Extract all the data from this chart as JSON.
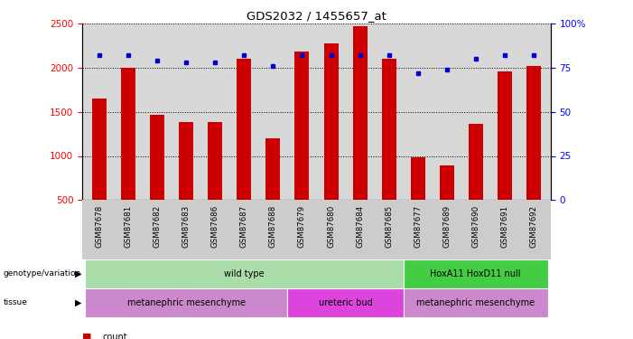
{
  "title": "GDS2032 / 1455657_at",
  "samples": [
    "GSM87678",
    "GSM87681",
    "GSM87682",
    "GSM87683",
    "GSM87686",
    "GSM87687",
    "GSM87688",
    "GSM87679",
    "GSM87680",
    "GSM87684",
    "GSM87685",
    "GSM87677",
    "GSM87689",
    "GSM87690",
    "GSM87691",
    "GSM87692"
  ],
  "counts": [
    1650,
    2000,
    1470,
    1380,
    1380,
    2100,
    1200,
    2180,
    2280,
    2470,
    2100,
    980,
    890,
    1360,
    1960,
    2020
  ],
  "percentiles": [
    82,
    82,
    79,
    78,
    78,
    82,
    76,
    82,
    82,
    82,
    82,
    72,
    74,
    80,
    82,
    82
  ],
  "ylim_left": [
    500,
    2500
  ],
  "ylim_right": [
    0,
    100
  ],
  "yticks_left": [
    500,
    1000,
    1500,
    2000,
    2500
  ],
  "yticks_right": [
    0,
    25,
    50,
    75,
    100
  ],
  "ytick_labels_right": [
    "0",
    "25",
    "50",
    "75",
    "100%"
  ],
  "bar_color": "#cc0000",
  "dot_color": "#0000cc",
  "bg_color": "#ffffff",
  "bar_area_bg": "#d8d8d8",
  "genotype_row": [
    {
      "label": "wild type",
      "start": 0,
      "end": 10,
      "color": "#aaddaa"
    },
    {
      "label": "HoxA11 HoxD11 null",
      "start": 11,
      "end": 15,
      "color": "#44cc44"
    }
  ],
  "tissue_row": [
    {
      "label": "metanephric mesenchyme",
      "start": 0,
      "end": 6,
      "color": "#cc88cc"
    },
    {
      "label": "ureteric bud",
      "start": 7,
      "end": 10,
      "color": "#dd44dd"
    },
    {
      "label": "metanephric mesenchyme",
      "start": 11,
      "end": 15,
      "color": "#cc88cc"
    }
  ],
  "legend_count_color": "#cc0000",
  "legend_dot_color": "#0000cc"
}
